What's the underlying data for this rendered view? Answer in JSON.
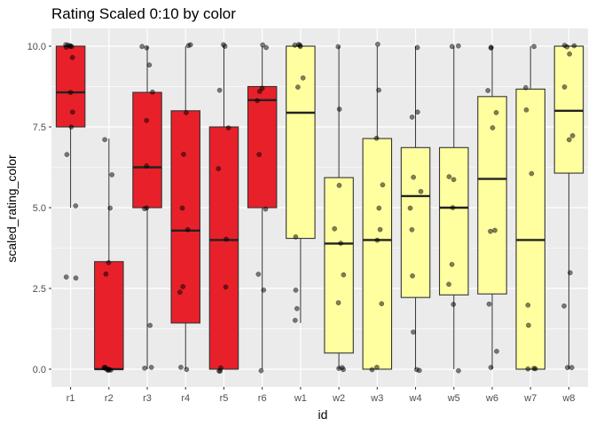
{
  "chart_data": {
    "type": "box",
    "title": "Rating Scaled 0:10 by color",
    "xlabel": "id",
    "ylabel": "scaled_rating_color",
    "ylim": [
      -0.55,
      10.55
    ],
    "yticks": [
      0.0,
      2.5,
      5.0,
      7.5,
      10.0
    ],
    "ytick_labels": [
      "0.0",
      "2.5",
      "5.0",
      "7.5",
      "10.0"
    ],
    "grid": true,
    "legend": "none",
    "colors": {
      "red": "#e8202a",
      "yellow": "#ffffa0",
      "panel": "#ebebeb",
      "grid": "#ffffff",
      "point": "#000000"
    },
    "categories": [
      "r1",
      "r2",
      "r3",
      "r4",
      "r5",
      "r6",
      "w1",
      "w2",
      "w3",
      "w4",
      "w5",
      "w6",
      "w7",
      "w8"
    ],
    "boxes": [
      {
        "id": "r1",
        "color": "red",
        "q1": 7.5,
        "median": 8.57,
        "q3": 10.0,
        "whisker_low": 5.0,
        "whisker_high": 10.0,
        "points": [
          10,
          10,
          10,
          10,
          10,
          10,
          9.7,
          8.6,
          8.0,
          7.5,
          6.7,
          5.0,
          2.86,
          2.86
        ]
      },
      {
        "id": "r2",
        "color": "red",
        "q1": 0.0,
        "median": 0.0,
        "q3": 3.33,
        "whisker_low": 0.0,
        "whisker_high": 7.14,
        "points": [
          0,
          0,
          0,
          0,
          0,
          0,
          0,
          0,
          2.9,
          3.33,
          5.0,
          6.0,
          7.14
        ]
      },
      {
        "id": "r3",
        "color": "red",
        "q1": 5.0,
        "median": 6.25,
        "q3": 8.57,
        "whisker_low": 0.0,
        "whisker_high": 10.0,
        "points": [
          10,
          10,
          9.4,
          8.6,
          7.7,
          6.25,
          5.0,
          5.0,
          1.4,
          0.0,
          0.0
        ]
      },
      {
        "id": "r4",
        "color": "red",
        "q1": 1.43,
        "median": 4.29,
        "q3": 8.0,
        "whisker_low": 0.0,
        "whisker_high": 10.0,
        "points": [
          10,
          10,
          8.0,
          6.67,
          5.0,
          4.29,
          2.5,
          2.4,
          0.0,
          0.0
        ]
      },
      {
        "id": "r5",
        "color": "red",
        "q1": 0.0,
        "median": 4.0,
        "q3": 7.5,
        "whisker_low": 0.0,
        "whisker_high": 10.0,
        "points": [
          10,
          10,
          8.6,
          7.5,
          6.25,
          4.0,
          2.5,
          0.0,
          0.0,
          0.0
        ]
      },
      {
        "id": "r6",
        "color": "red",
        "q1": 5.0,
        "median": 8.33,
        "q3": 8.75,
        "whisker_low": 0.0,
        "whisker_high": 10.0,
        "points": [
          10,
          10,
          8.75,
          8.6,
          8.33,
          6.67,
          5.0,
          3.0,
          2.5,
          0.0
        ]
      },
      {
        "id": "w1",
        "color": "yellow",
        "q1": 4.05,
        "median": 7.94,
        "q3": 10.0,
        "whisker_low": 1.43,
        "whisker_high": 10.0,
        "points": [
          10,
          10,
          10,
          10,
          9.0,
          8.75,
          4.05,
          2.5,
          1.9,
          1.5
        ]
      },
      {
        "id": "w2",
        "color": "yellow",
        "q1": 0.5,
        "median": 3.89,
        "q3": 5.93,
        "whisker_low": 0.0,
        "whisker_high": 10.0,
        "points": [
          10,
          8.0,
          5.7,
          4.3,
          3.9,
          2.9,
          2.0,
          0.0,
          0.0,
          0.0
        ]
      },
      {
        "id": "w3",
        "color": "yellow",
        "q1": 0.0,
        "median": 4.0,
        "q3": 7.14,
        "whisker_low": 0.0,
        "whisker_high": 10.0,
        "points": [
          10,
          8.6,
          7.2,
          5.7,
          5.0,
          4.29,
          4.0,
          2.0,
          0.0,
          0.0
        ]
      },
      {
        "id": "w4",
        "color": "yellow",
        "q1": 2.22,
        "median": 5.36,
        "q3": 6.86,
        "whisker_low": 0.0,
        "whisker_high": 10.0,
        "points": [
          10,
          8.0,
          7.8,
          6.0,
          5.5,
          5.0,
          4.3,
          2.86,
          1.1,
          0.0,
          0.0
        ]
      },
      {
        "id": "w5",
        "color": "yellow",
        "q1": 2.3,
        "median": 5.0,
        "q3": 6.86,
        "whisker_low": 0.0,
        "whisker_high": 10.0,
        "points": [
          10,
          10,
          6.0,
          5.9,
          5.0,
          3.3,
          2.6,
          2.0,
          0.0
        ]
      },
      {
        "id": "w6",
        "color": "yellow",
        "q1": 2.33,
        "median": 5.89,
        "q3": 8.44,
        "whisker_low": 0.0,
        "whisker_high": 10.0,
        "points": [
          10,
          10,
          8.6,
          8.0,
          7.5,
          4.3,
          4.3,
          2.0,
          0.5,
          0.0
        ]
      },
      {
        "id": "w7",
        "color": "yellow",
        "q1": 0.0,
        "median": 4.0,
        "q3": 8.67,
        "whisker_low": 0.0,
        "whisker_high": 10.0,
        "points": [
          10,
          8.75,
          8.0,
          6.0,
          2.0,
          1.4,
          0.0,
          0.0,
          0.0
        ]
      },
      {
        "id": "w8",
        "color": "yellow",
        "q1": 6.07,
        "median": 8.0,
        "q3": 10.0,
        "whisker_low": 0.0,
        "whisker_high": 10.0,
        "points": [
          10,
          10,
          10,
          9.75,
          8.75,
          7.2,
          7.1,
          3.0,
          2.0,
          0.0,
          0.0
        ]
      }
    ]
  }
}
